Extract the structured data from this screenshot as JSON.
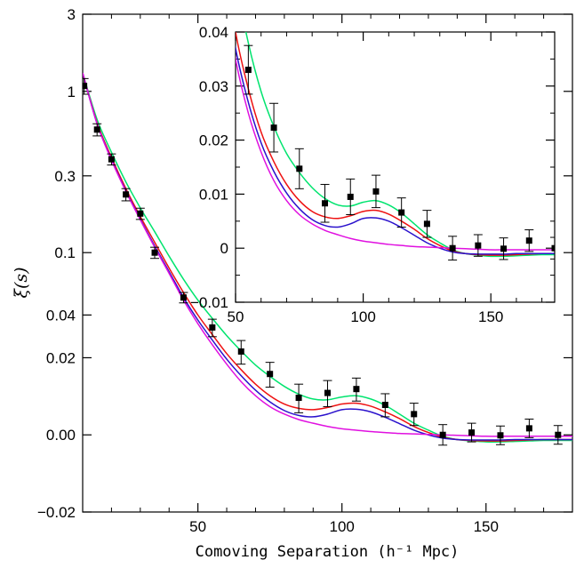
{
  "chart_data": {
    "type": "line",
    "title": "",
    "xlabel": "Comoving Separation (h⁻¹ Mpc)",
    "ylabel": "ξ(s)",
    "main": {
      "xlim": [
        10,
        180
      ],
      "ylim": [
        -0.02,
        3
      ],
      "y_scale": "asinh-like (log at large ξ, linear near zero)",
      "x_ticks": [
        50,
        100,
        150
      ],
      "x_tick_labels": [
        "50",
        "100",
        "150"
      ],
      "y_ticks": [
        3,
        1,
        0.3,
        0.1,
        0.04,
        0.02,
        0.0,
        -0.02
      ],
      "y_tick_labels": [
        "3",
        "1",
        "0.3",
        "0.1",
        "0.04",
        "0.02",
        "0.00",
        "−0.02"
      ]
    },
    "inset": {
      "xlim": [
        50,
        175
      ],
      "ylim": [
        -0.01,
        0.04
      ],
      "x_ticks": [
        50,
        100,
        150
      ],
      "x_tick_labels": [
        "50",
        "100",
        "150"
      ],
      "y_ticks": [
        0.04,
        0.03,
        0.02,
        0.01,
        0,
        -0.01
      ],
      "y_tick_labels": [
        "0.04",
        "0.03",
        "0.02",
        "0.01",
        "0",
        "−0.01"
      ]
    },
    "data_points": {
      "x": [
        10.5,
        15,
        20,
        25,
        30,
        35,
        45,
        55,
        65,
        75,
        85,
        95,
        105,
        115,
        125,
        135,
        145,
        155,
        165,
        175
      ],
      "y": [
        1.08,
        0.58,
        0.38,
        0.23,
        0.175,
        0.1,
        0.052,
        0.033,
        0.0223,
        0.0147,
        0.0083,
        0.0095,
        0.0105,
        0.0066,
        0.0045,
        0.0,
        0.0005,
        -0.0001,
        0.0014,
        0.0
      ],
      "err": [
        0.12,
        0.05,
        0.03,
        0.02,
        0.014,
        0.008,
        0.004,
        0.0045,
        0.0045,
        0.0037,
        0.0035,
        0.0033,
        0.003,
        0.0027,
        0.0025,
        0.0022,
        0.002,
        0.002,
        0.002,
        0.002
      ]
    },
    "series": [
      {
        "name": "green model",
        "color": "#00e46e",
        "x": [
          10,
          15,
          20,
          25,
          30,
          35,
          40,
          45,
          50,
          55,
          60,
          65,
          70,
          75,
          80,
          85,
          90,
          95,
          100,
          105,
          110,
          115,
          120,
          125,
          130,
          135,
          140,
          145,
          150,
          155,
          160,
          165,
          170,
          175,
          180
        ],
        "y": [
          1.3,
          0.67,
          0.42,
          0.275,
          0.19,
          0.135,
          0.095,
          0.068,
          0.05,
          0.038,
          0.029,
          0.0225,
          0.0175,
          0.014,
          0.0112,
          0.0092,
          0.008,
          0.0078,
          0.0085,
          0.0088,
          0.008,
          0.0065,
          0.0045,
          0.0025,
          0.001,
          -0.0003,
          -0.001,
          -0.0013,
          -0.0015,
          -0.0015,
          -0.0014,
          -0.0013,
          -0.0012,
          -0.0012,
          -0.0012
        ]
      },
      {
        "name": "red model",
        "color": "#ee1111",
        "x": [
          10,
          15,
          20,
          25,
          30,
          35,
          40,
          45,
          50,
          55,
          60,
          65,
          70,
          75,
          80,
          85,
          90,
          95,
          100,
          105,
          110,
          115,
          120,
          125,
          130,
          135,
          140,
          145,
          150,
          155,
          160,
          165,
          170,
          175,
          180
        ],
        "y": [
          1.3,
          0.64,
          0.39,
          0.25,
          0.168,
          0.116,
          0.08,
          0.056,
          0.04,
          0.0295,
          0.0215,
          0.016,
          0.0118,
          0.0088,
          0.0068,
          0.0058,
          0.0055,
          0.006,
          0.0068,
          0.007,
          0.0063,
          0.005,
          0.0035,
          0.0018,
          0.0005,
          -0.0005,
          -0.001,
          -0.0012,
          -0.0013,
          -0.0013,
          -0.0012,
          -0.0011,
          -0.001,
          -0.001,
          -0.001
        ]
      },
      {
        "name": "blue model",
        "color": "#2a11cc",
        "x": [
          10,
          15,
          20,
          25,
          30,
          35,
          40,
          45,
          50,
          55,
          60,
          65,
          70,
          75,
          80,
          85,
          90,
          95,
          100,
          105,
          110,
          115,
          120,
          125,
          130,
          135,
          140,
          145,
          150,
          155,
          160,
          165,
          170,
          175,
          180
        ],
        "y": [
          1.3,
          0.63,
          0.38,
          0.243,
          0.162,
          0.11,
          0.076,
          0.052,
          0.037,
          0.027,
          0.0195,
          0.0142,
          0.0102,
          0.0073,
          0.0053,
          0.0042,
          0.0039,
          0.0045,
          0.0055,
          0.0056,
          0.005,
          0.0038,
          0.0024,
          0.001,
          0.0,
          -0.0007,
          -0.001,
          -0.0011,
          -0.0011,
          -0.0011,
          -0.001,
          -0.001,
          -0.001,
          -0.001,
          -0.001
        ]
      },
      {
        "name": "magenta model",
        "color": "#e010e0",
        "x": [
          10,
          15,
          20,
          25,
          30,
          35,
          40,
          45,
          50,
          55,
          60,
          65,
          70,
          75,
          80,
          85,
          90,
          95,
          100,
          105,
          110,
          115,
          120,
          125,
          130,
          135,
          140,
          145,
          150,
          155,
          160,
          165,
          170,
          175,
          180
        ],
        "y": [
          1.3,
          0.63,
          0.375,
          0.24,
          0.16,
          0.108,
          0.074,
          0.05,
          0.035,
          0.025,
          0.0178,
          0.0125,
          0.0088,
          0.0062,
          0.0045,
          0.0033,
          0.0025,
          0.0018,
          0.0013,
          0.001,
          0.0007,
          0.0005,
          0.0003,
          0.0002,
          0.0001,
          0.0,
          -0.0001,
          -0.0002,
          -0.0003,
          -0.0003,
          -0.0003,
          -0.0003,
          -0.0003,
          -0.0003,
          -0.0003
        ]
      }
    ]
  }
}
